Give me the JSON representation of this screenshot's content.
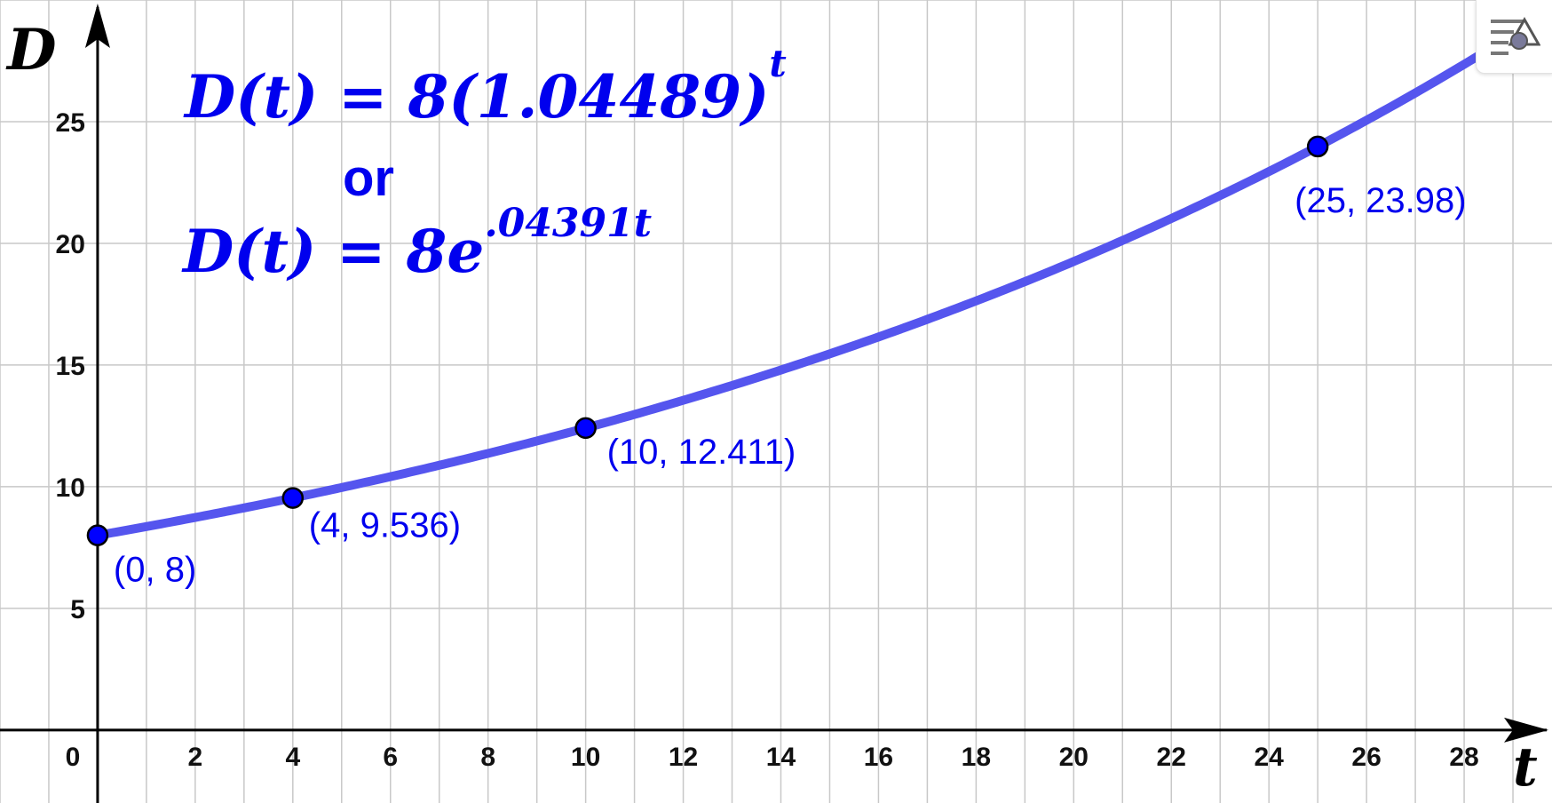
{
  "chart_data": {
    "type": "line",
    "xlabel": "t",
    "ylabel": "D",
    "xlim": [
      -2,
      29.8
    ],
    "ylim": [
      -3,
      30
    ],
    "x_ticks": [
      0,
      2,
      4,
      6,
      8,
      10,
      12,
      14,
      16,
      18,
      20,
      22,
      24,
      26,
      28
    ],
    "y_ticks": [
      5,
      10,
      15,
      20,
      25
    ],
    "x_tick_labels": [
      "0",
      "2",
      "4",
      "6",
      "8",
      "10",
      "12",
      "14",
      "16",
      "18",
      "20",
      "22",
      "24",
      "26",
      "28"
    ],
    "y_tick_labels": [
      "5",
      "10",
      "15",
      "20",
      "25"
    ],
    "grid": true,
    "function": {
      "a": 8,
      "b": 1.04489
    },
    "points": [
      {
        "x": 0,
        "y": 8,
        "label": "(0, 8)"
      },
      {
        "x": 4,
        "y": 9.536,
        "label": "(4, 9.536)"
      },
      {
        "x": 10,
        "y": 12.411,
        "label": "(10, 12.411)"
      },
      {
        "x": 25,
        "y": 23.98,
        "label": "(25, 23.98)"
      }
    ],
    "annotations": {
      "equation1_lhs": "D(t) = 8(1.04489)",
      "equation1_exponent": "t",
      "connector": "or",
      "equation2_lhs": "D(t) = 8e",
      "equation2_exponent": ".04391t"
    },
    "colors": {
      "curve": "#5555ee",
      "point_fill": "#0000ff",
      "text": "#0000ee",
      "grid": "#c8c8c8",
      "axis": "#000000"
    }
  },
  "toolbar": {
    "style_bar_icon": "style-bar-icon"
  }
}
